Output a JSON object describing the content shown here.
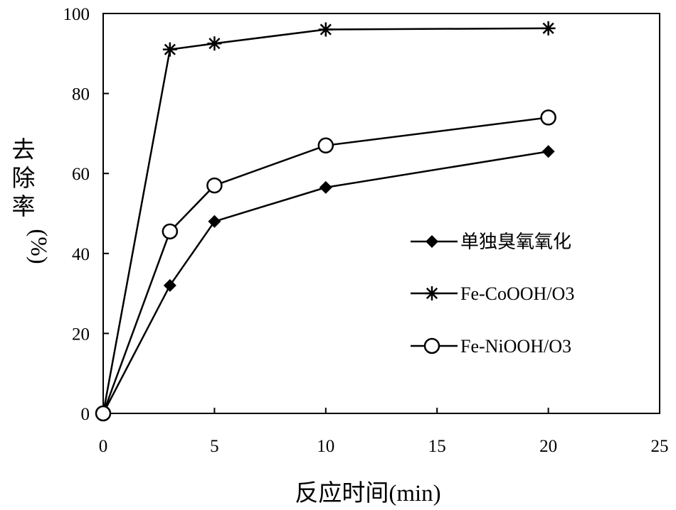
{
  "chart_data": {
    "type": "line",
    "title": "",
    "xlabel": "反应时间(min)",
    "ylabel": "去除率(%)",
    "ylabel_chars": [
      "去",
      "除",
      "率",
      "(%)"
    ],
    "xlim": [
      0,
      25
    ],
    "ylim": [
      0,
      100
    ],
    "xticks": [
      0,
      5,
      10,
      15,
      20,
      25
    ],
    "yticks": [
      0,
      20,
      40,
      60,
      80,
      100
    ],
    "grid": false,
    "legend_position": "right",
    "series": [
      {
        "name": "单独臭氧氧化",
        "marker": "diamond",
        "color": "#000000",
        "x": [
          0,
          3,
          5,
          10,
          20
        ],
        "y": [
          0,
          32,
          48,
          56.5,
          65.5
        ]
      },
      {
        "name": "Fe-CoOOH/O3",
        "marker": "asterisk",
        "color": "#000000",
        "x": [
          0,
          3,
          5,
          10,
          20
        ],
        "y": [
          0,
          91,
          92.5,
          96,
          96.3
        ]
      },
      {
        "name": "Fe-NiOOH/O3",
        "marker": "circle",
        "color": "#000000",
        "x": [
          0,
          3,
          5,
          10,
          20
        ],
        "y": [
          0,
          45.5,
          57,
          67,
          74
        ]
      }
    ]
  }
}
